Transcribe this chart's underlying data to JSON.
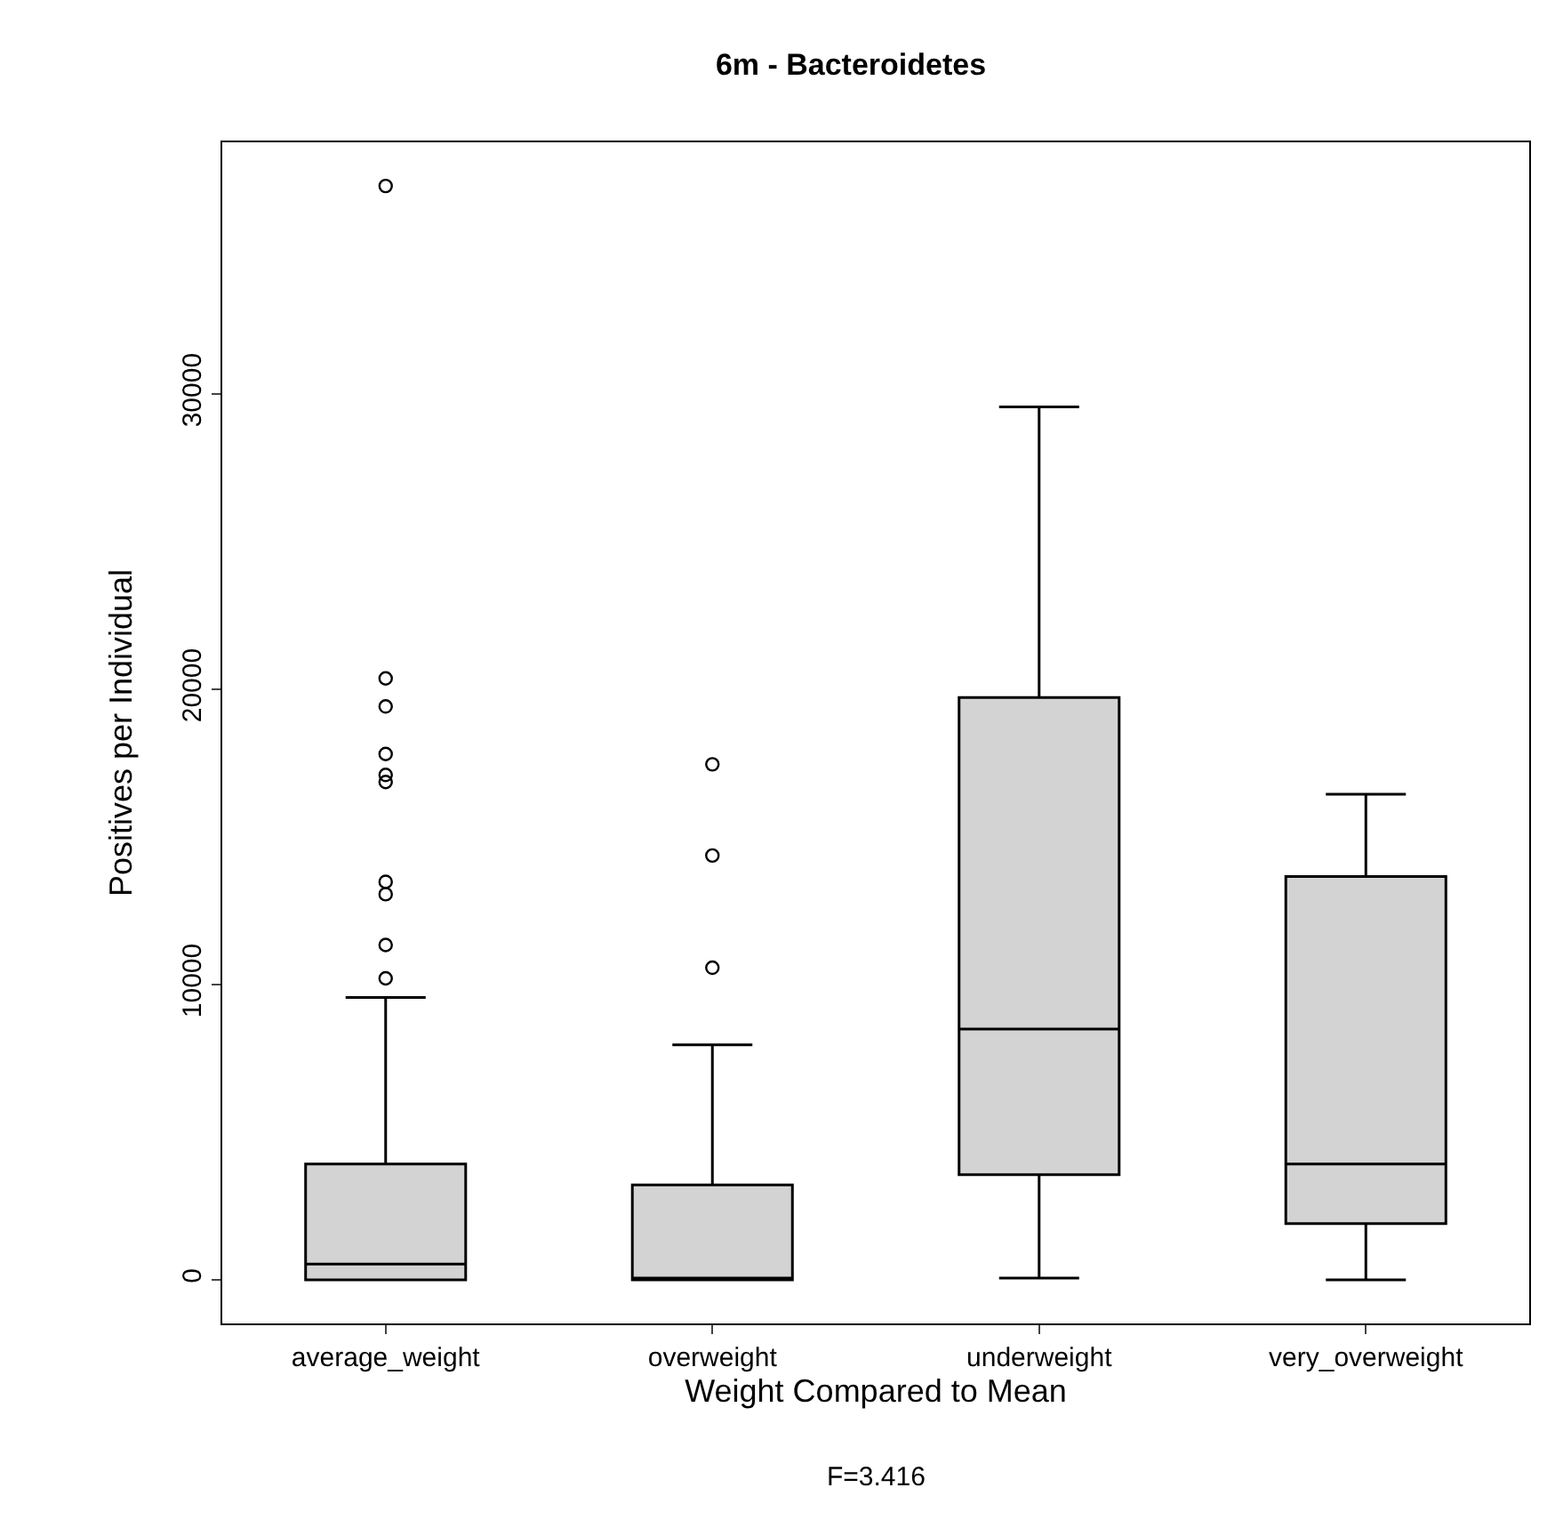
{
  "chart_data": {
    "type": "box",
    "title": "6m - Bacteroidetes",
    "xlabel": "Weight Compared to Mean",
    "ylabel": "Positives per Individual",
    "annotations": [
      "F=3.416"
    ],
    "categories": [
      "average_weight",
      "overweight",
      "underweight",
      "very_overweight"
    ],
    "color": "#d3d3d3",
    "boxes": [
      {
        "low": 0,
        "q1": 0,
        "median": 530,
        "q3": 3920,
        "high": 9560,
        "outliers": [
          37050,
          20370,
          19420,
          17810,
          17100,
          16860,
          13480,
          13060,
          11340,
          10210
        ]
      },
      {
        "low": 0,
        "q1": 0,
        "median": 0,
        "q3": 3210,
        "high": 7960,
        "outliers": [
          17460,
          14370,
          10570
        ]
      },
      {
        "low": 60,
        "q1": 3560,
        "median": 8490,
        "q3": 19720,
        "high": 29570
      },
      {
        "low": 0,
        "q1": 1900,
        "median": 3920,
        "q3": 13660,
        "high": 16450
      }
    ],
    "ylim": [
      -1480,
      38530
    ],
    "yticks": [
      0,
      10000,
      20000,
      30000
    ]
  }
}
